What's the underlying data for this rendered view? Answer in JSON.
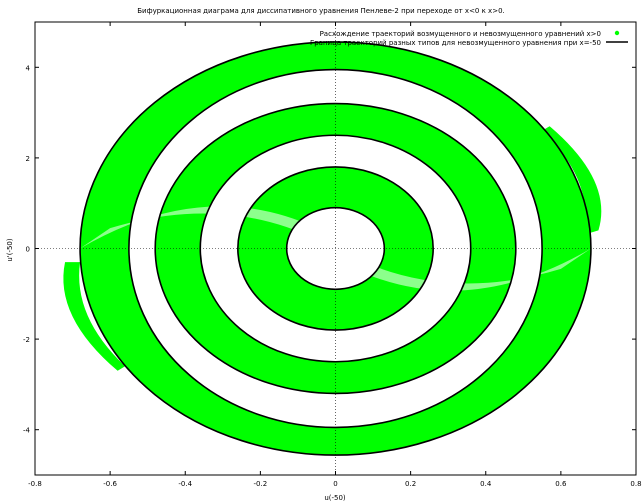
{
  "chart_data": {
    "type": "scatter",
    "title": "Бифуркационная диаграма для диссипативного уравнения Пенлеве-2 при переходе от x<0 к x>0.",
    "xlabel": "u(-50)",
    "ylabel": "u'(-50)",
    "xlim": [
      -0.8,
      0.8
    ],
    "ylim": [
      -5,
      5
    ],
    "x_ticks": [
      "-0.8",
      "-0.6",
      "-0.4",
      "-0.2",
      "0",
      "0.2",
      "0.4",
      "0.6",
      "0.8"
    ],
    "y_ticks": [
      "-4",
      "-2",
      "0",
      "2",
      "4"
    ],
    "grid": "zero axes only (dotted)",
    "legend_position": "top-right",
    "series": [
      {
        "name": "Расхождение траекторий возмущенного и невозмущенного уравнений x>0",
        "kind": "points",
        "color": "#00ff00"
      },
      {
        "name": "Граница траекторий разных типов для невозмущенного уравнения при x=-50",
        "kind": "line",
        "color": "#000000"
      }
    ],
    "curve_model": {
      "outer_ellipse_rx": 0.68,
      "outer_ellipse_ry": 4.56,
      "inner_ellipse_rx": 0.58,
      "inner_ellipse_ry": 3.9,
      "spiral_endpoints": [
        [
          0.0,
          0.0
        ]
      ]
    }
  }
}
